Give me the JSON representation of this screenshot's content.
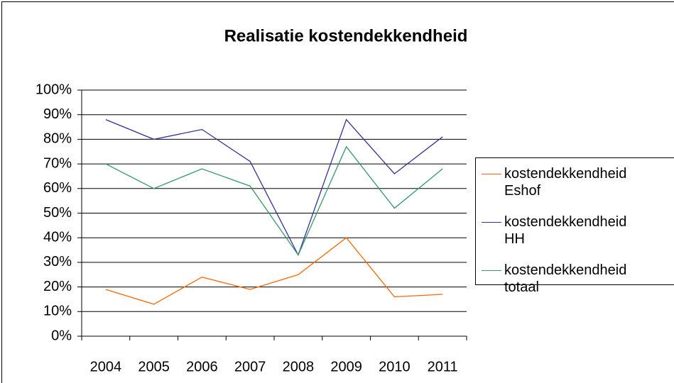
{
  "chart_data": {
    "type": "line",
    "title": "Realisatie kostendekkendheid",
    "categories": [
      "2004",
      "2005",
      "2006",
      "2007",
      "2008",
      "2009",
      "2010",
      "2011"
    ],
    "series": [
      {
        "name": "kostendekkendheid Eshof",
        "color": "#ff6600",
        "values": [
          19,
          13,
          24,
          19,
          25,
          40,
          16,
          17
        ]
      },
      {
        "name": "kostendekkendheid HH",
        "color": "#333399",
        "values": [
          88,
          80,
          84,
          71,
          33,
          88,
          66,
          81
        ]
      },
      {
        "name": "kostendekkendheid totaal",
        "color": "#339966",
        "values": [
          70,
          60,
          68,
          61,
          33,
          77,
          52,
          68
        ]
      }
    ],
    "ylim": [
      0,
      100
    ],
    "yticks": [
      {
        "value": 0,
        "label": "0%"
      },
      {
        "value": 10,
        "label": "10%"
      },
      {
        "value": 20,
        "label": "20%"
      },
      {
        "value": 30,
        "label": "30%"
      },
      {
        "value": 40,
        "label": "40%"
      },
      {
        "value": 50,
        "label": "50%"
      },
      {
        "value": 60,
        "label": "60%"
      },
      {
        "value": 70,
        "label": "70%"
      },
      {
        "value": 80,
        "label": "80%"
      },
      {
        "value": 90,
        "label": "90%"
      },
      {
        "value": 100,
        "label": "100%"
      }
    ],
    "grid": true,
    "legend": "right"
  }
}
